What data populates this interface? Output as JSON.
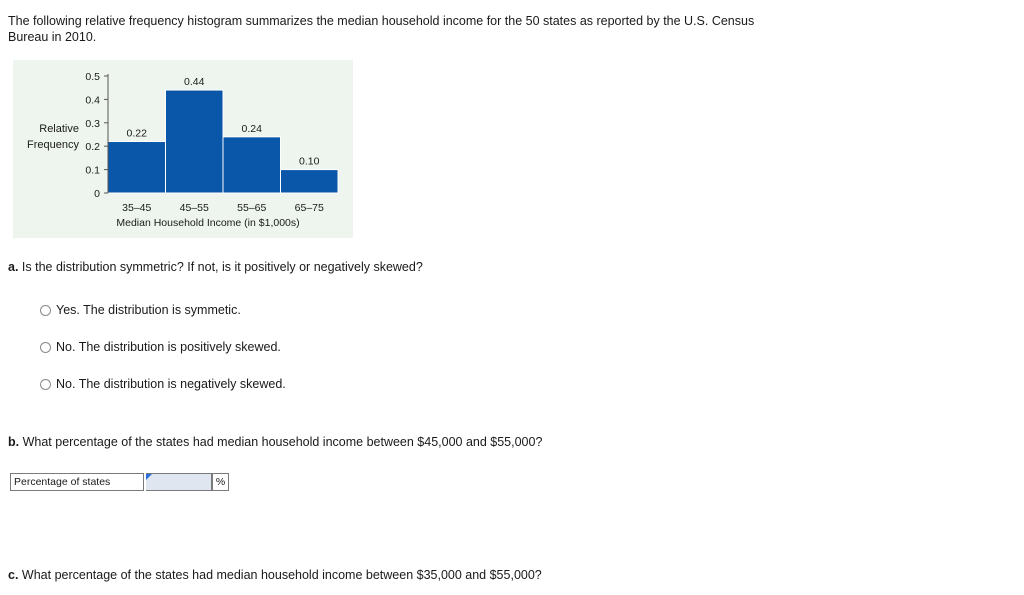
{
  "intro": "The following relative frequency histogram summarizes the median household income for the 50 states as reported by the U.S. Census Bureau in 2010.",
  "chart_data": {
    "type": "bar",
    "categories": [
      "35–45",
      "45–55",
      "55–65",
      "65–75"
    ],
    "values": [
      0.22,
      0.44,
      0.24,
      0.1
    ],
    "data_labels": [
      "0.22",
      "0.44",
      "0.24",
      "0.10"
    ],
    "y_ticks": [
      "0",
      "0.1",
      "0.2",
      "0.3",
      "0.4",
      "0.5"
    ],
    "ylim": [
      0,
      0.5
    ],
    "ylabel_line1": "Relative",
    "ylabel_line2": "Frequency",
    "xlabel": "Median Household Income (in $1,000s)",
    "bar_color": "#0a56a8",
    "grid": false
  },
  "question_a": {
    "letter": "a.",
    "text": "Is the distribution symmetric? If not, is it positively or negatively skewed?",
    "options": [
      "Yes. The distribution is symmetic.",
      "No. The distribution is positively skewed.",
      "No. The distribution is negatively skewed."
    ]
  },
  "question_b": {
    "letter": "b.",
    "text": "What percentage of the states had median household income between $45,000 and $55,000?",
    "answer_label": "Percentage of states",
    "answer_value": "",
    "answer_unit": "%"
  },
  "question_c": {
    "letter": "c.",
    "text": "What percentage of the states had median household income between $35,000 and $55,000?"
  }
}
